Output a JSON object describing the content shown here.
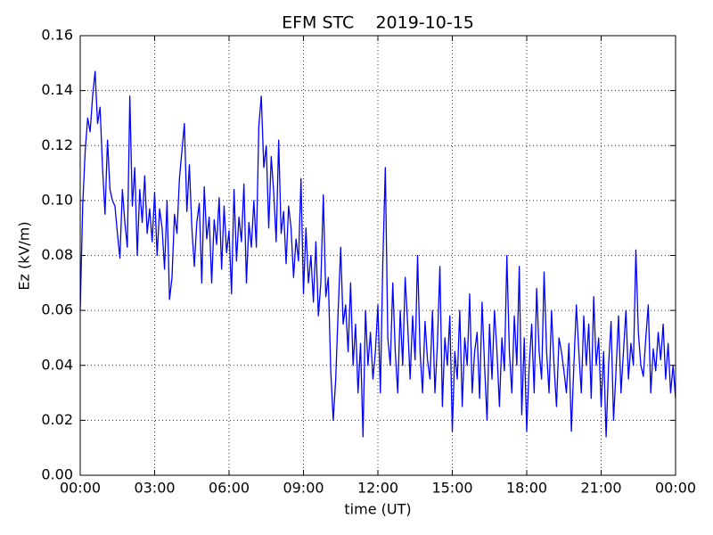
{
  "chart_data": {
    "type": "line",
    "title": "EFM STC    2019-10-15",
    "xlabel": "time (UT)",
    "ylabel": "Ez (kV/m)",
    "color": "#0000ff",
    "grid": true,
    "xlim": [
      0,
      24
    ],
    "xticks": [
      {
        "value": 0,
        "label": "00:00"
      },
      {
        "value": 3,
        "label": "03:00"
      },
      {
        "value": 6,
        "label": "06:00"
      },
      {
        "value": 9,
        "label": "09:00"
      },
      {
        "value": 12,
        "label": "12:00"
      },
      {
        "value": 15,
        "label": "15:00"
      },
      {
        "value": 18,
        "label": "18:00"
      },
      {
        "value": 21,
        "label": "21:00"
      },
      {
        "value": 24,
        "label": "00:00"
      }
    ],
    "ylim": [
      0,
      0.16
    ],
    "yticks": [
      {
        "value": 0,
        "label": "0.00"
      },
      {
        "value": 0.02,
        "label": "0.02"
      },
      {
        "value": 0.04,
        "label": "0.04"
      },
      {
        "value": 0.06,
        "label": "0.06"
      },
      {
        "value": 0.08,
        "label": "0.08"
      },
      {
        "value": 0.1,
        "label": "0.10"
      },
      {
        "value": 0.12,
        "label": "0.12"
      },
      {
        "value": 0.14,
        "label": "0.14"
      },
      {
        "value": 0.16,
        "label": "0.16"
      }
    ],
    "x": [
      0,
      0.1,
      0.2,
      0.3,
      0.4,
      0.5,
      0.6,
      0.7,
      0.8,
      0.9,
      1,
      1.1,
      1.2,
      1.3,
      1.4,
      1.5,
      1.6,
      1.7,
      1.8,
      1.9,
      2,
      2.1,
      2.2,
      2.3,
      2.4,
      2.5,
      2.6,
      2.7,
      2.8,
      2.9,
      3,
      3.1,
      3.2,
      3.3,
      3.4,
      3.5,
      3.6,
      3.7,
      3.8,
      3.9,
      4,
      4.1,
      4.2,
      4.3,
      4.4,
      4.5,
      4.6,
      4.7,
      4.8,
      4.9,
      5,
      5.1,
      5.2,
      5.3,
      5.4,
      5.5,
      5.6,
      5.7,
      5.8,
      5.9,
      6,
      6.1,
      6.2,
      6.3,
      6.4,
      6.5,
      6.6,
      6.7,
      6.8,
      6.9,
      7,
      7.1,
      7.2,
      7.3,
      7.4,
      7.5,
      7.6,
      7.7,
      7.8,
      7.9,
      8,
      8.1,
      8.2,
      8.3,
      8.4,
      8.5,
      8.6,
      8.7,
      8.8,
      8.9,
      9,
      9.1,
      9.2,
      9.3,
      9.4,
      9.5,
      9.6,
      9.7,
      9.8,
      9.9,
      10,
      10.1,
      10.2,
      10.3,
      10.4,
      10.5,
      10.6,
      10.7,
      10.8,
      10.9,
      11,
      11.1,
      11.2,
      11.3,
      11.4,
      11.5,
      11.6,
      11.7,
      11.8,
      11.9,
      12,
      12.1,
      12.2,
      12.3,
      12.4,
      12.5,
      12.6,
      12.7,
      12.8,
      12.9,
      13,
      13.1,
      13.2,
      13.3,
      13.4,
      13.5,
      13.6,
      13.7,
      13.8,
      13.9,
      14,
      14.1,
      14.2,
      14.3,
      14.4,
      14.5,
      14.6,
      14.7,
      14.8,
      14.9,
      15,
      15.1,
      15.2,
      15.3,
      15.4,
      15.5,
      15.6,
      15.7,
      15.8,
      15.9,
      16,
      16.1,
      16.2,
      16.3,
      16.4,
      16.5,
      16.6,
      16.7,
      16.8,
      16.9,
      17,
      17.1,
      17.2,
      17.3,
      17.4,
      17.5,
      17.6,
      17.7,
      17.8,
      17.9,
      18,
      18.1,
      18.2,
      18.3,
      18.4,
      18.5,
      18.6,
      18.7,
      18.8,
      18.9,
      19,
      19.1,
      19.2,
      19.3,
      19.4,
      19.5,
      19.6,
      19.7,
      19.8,
      19.9,
      20,
      20.1,
      20.2,
      20.3,
      20.4,
      20.5,
      20.6,
      20.7,
      20.8,
      20.9,
      21,
      21.1,
      21.2,
      21.3,
      21.4,
      21.5,
      21.6,
      21.7,
      21.8,
      21.9,
      22,
      22.1,
      22.2,
      22.3,
      22.4,
      22.5,
      22.6,
      22.7,
      22.8,
      22.9,
      23,
      23.1,
      23.2,
      23.3,
      23.4,
      23.5,
      23.6,
      23.7,
      23.8,
      23.9,
      24
    ],
    "values": [
      0.06,
      0.098,
      0.118,
      0.13,
      0.125,
      0.138,
      0.147,
      0.128,
      0.134,
      0.112,
      0.095,
      0.122,
      0.104,
      0.1,
      0.098,
      0.088,
      0.079,
      0.104,
      0.092,
      0.083,
      0.138,
      0.098,
      0.112,
      0.08,
      0.104,
      0.092,
      0.109,
      0.088,
      0.097,
      0.085,
      0.103,
      0.08,
      0.097,
      0.09,
      0.075,
      0.1,
      0.064,
      0.072,
      0.095,
      0.088,
      0.108,
      0.118,
      0.128,
      0.096,
      0.113,
      0.09,
      0.076,
      0.092,
      0.099,
      0.07,
      0.105,
      0.086,
      0.094,
      0.07,
      0.093,
      0.084,
      0.101,
      0.075,
      0.098,
      0.081,
      0.089,
      0.066,
      0.104,
      0.078,
      0.094,
      0.085,
      0.106,
      0.07,
      0.092,
      0.083,
      0.1,
      0.083,
      0.127,
      0.138,
      0.112,
      0.12,
      0.09,
      0.116,
      0.103,
      0.085,
      0.122,
      0.088,
      0.096,
      0.077,
      0.098,
      0.09,
      0.072,
      0.086,
      0.078,
      0.108,
      0.066,
      0.09,
      0.07,
      0.08,
      0.063,
      0.085,
      0.058,
      0.07,
      0.102,
      0.065,
      0.072,
      0.038,
      0.02,
      0.035,
      0.06,
      0.083,
      0.055,
      0.062,
      0.045,
      0.07,
      0.04,
      0.055,
      0.03,
      0.048,
      0.014,
      0.06,
      0.04,
      0.052,
      0.035,
      0.045,
      0.062,
      0.03,
      0.078,
      0.112,
      0.05,
      0.04,
      0.07,
      0.045,
      0.03,
      0.06,
      0.04,
      0.072,
      0.055,
      0.035,
      0.058,
      0.042,
      0.08,
      0.045,
      0.03,
      0.056,
      0.042,
      0.035,
      0.06,
      0.03,
      0.048,
      0.076,
      0.025,
      0.05,
      0.04,
      0.058,
      0.016,
      0.045,
      0.035,
      0.06,
      0.025,
      0.05,
      0.04,
      0.066,
      0.03,
      0.045,
      0.052,
      0.028,
      0.063,
      0.04,
      0.02,
      0.055,
      0.035,
      0.06,
      0.045,
      0.025,
      0.05,
      0.038,
      0.08,
      0.045,
      0.03,
      0.058,
      0.04,
      0.076,
      0.022,
      0.05,
      0.016,
      0.04,
      0.055,
      0.03,
      0.068,
      0.045,
      0.035,
      0.074,
      0.045,
      0.03,
      0.06,
      0.04,
      0.025,
      0.05,
      0.045,
      0.038,
      0.03,
      0.048,
      0.016,
      0.04,
      0.062,
      0.045,
      0.03,
      0.058,
      0.04,
      0.055,
      0.028,
      0.065,
      0.04,
      0.05,
      0.025,
      0.045,
      0.014,
      0.04,
      0.056,
      0.02,
      0.038,
      0.058,
      0.03,
      0.045,
      0.06,
      0.035,
      0.048,
      0.04,
      0.082,
      0.052,
      0.04,
      0.036,
      0.05,
      0.062,
      0.03,
      0.046,
      0.038,
      0.052,
      0.042,
      0.055,
      0.035,
      0.048,
      0.03,
      0.04,
      0.028
    ]
  }
}
